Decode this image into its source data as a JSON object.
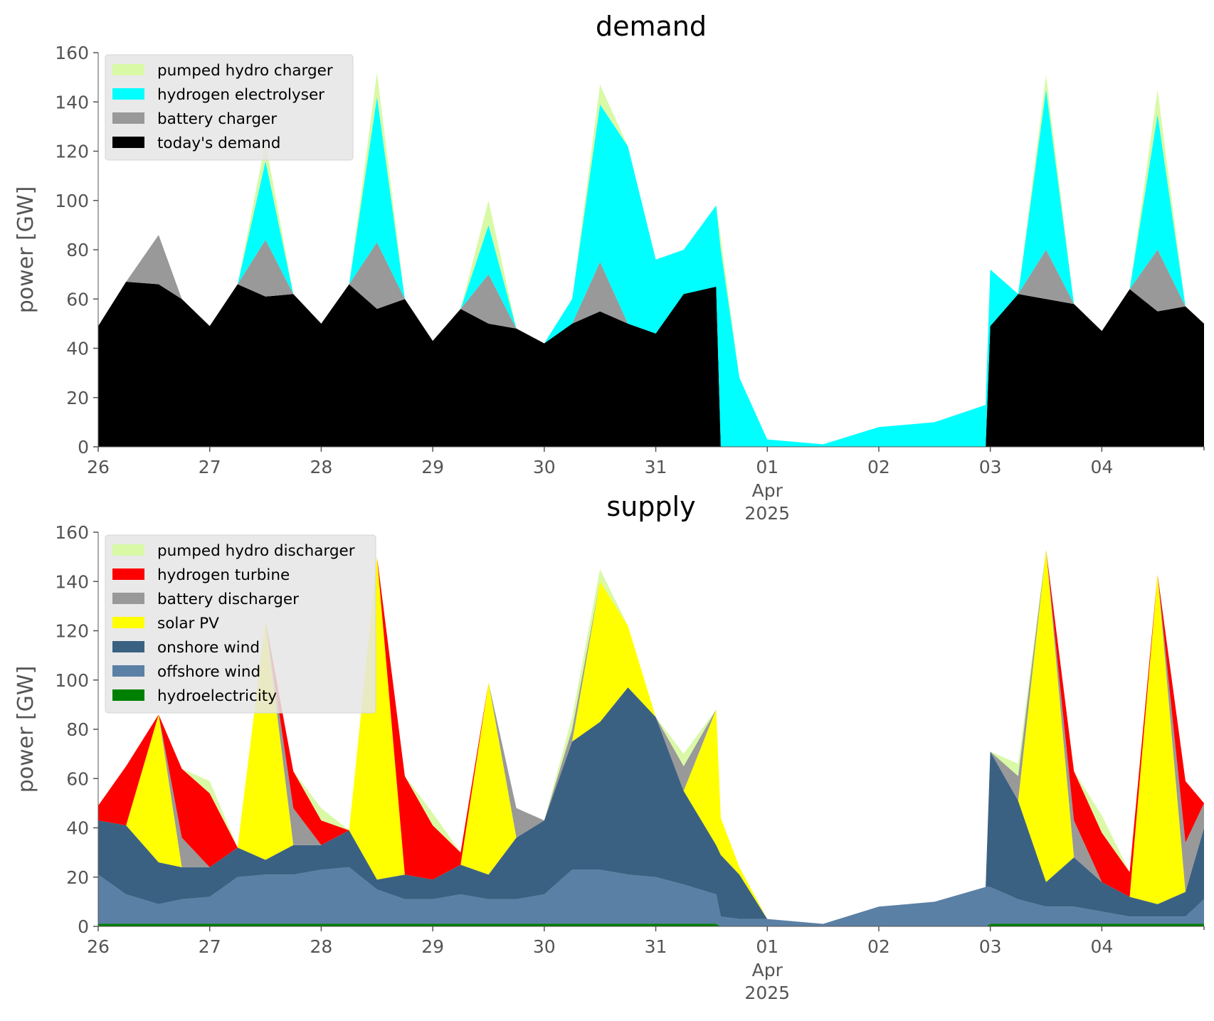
{
  "chart_data": [
    {
      "type": "area",
      "stacked": true,
      "title": "demand",
      "ylabel": "power [GW]",
      "xlabel": "",
      "ylim": [
        0,
        160
      ],
      "yticks": [
        0,
        20,
        40,
        60,
        80,
        100,
        120,
        140,
        160
      ],
      "xlim": [
        "2025-03-26T00:00",
        "2025-04-04T22:00"
      ],
      "xticks": [
        {
          "date": "2025-03-26",
          "label": "26"
        },
        {
          "date": "2025-03-27",
          "label": "27"
        },
        {
          "date": "2025-03-28",
          "label": "28"
        },
        {
          "date": "2025-03-29",
          "label": "29"
        },
        {
          "date": "2025-03-30",
          "label": "30"
        },
        {
          "date": "2025-03-31",
          "label": "31"
        },
        {
          "date": "2025-04-01",
          "label": "01",
          "sub1": "Apr",
          "sub2": "2025"
        },
        {
          "date": "2025-04-02",
          "label": "02"
        },
        {
          "date": "2025-04-03",
          "label": "03"
        },
        {
          "date": "2025-04-04",
          "label": "04"
        }
      ],
      "grid": false,
      "legend_position": "top-left",
      "x": [
        "2025-03-26T00:00",
        "2025-03-26T06:00",
        "2025-03-26T13:00",
        "2025-03-26T18:00",
        "2025-03-27T00:00",
        "2025-03-27T06:00",
        "2025-03-27T12:00",
        "2025-03-27T18:00",
        "2025-03-28T00:00",
        "2025-03-28T06:00",
        "2025-03-28T12:00",
        "2025-03-28T18:00",
        "2025-03-29T00:00",
        "2025-03-29T06:00",
        "2025-03-29T12:00",
        "2025-03-29T18:00",
        "2025-03-30T00:00",
        "2025-03-30T06:00",
        "2025-03-30T12:00",
        "2025-03-30T18:00",
        "2025-03-31T00:00",
        "2025-03-31T06:00",
        "2025-03-31T13:00",
        "2025-03-31T14:00",
        "2025-03-31T18:00",
        "2025-04-01T00:00",
        "2025-04-01T12:00",
        "2025-04-02T00:00",
        "2025-04-02T12:00",
        "2025-04-02T23:00",
        "2025-04-03T00:00",
        "2025-04-03T06:00",
        "2025-04-03T12:00",
        "2025-04-03T18:00",
        "2025-04-04T00:00",
        "2025-04-04T06:00",
        "2025-04-04T12:00",
        "2025-04-04T18:00",
        "2025-04-04T22:00"
      ],
      "series": [
        {
          "name": "today's demand",
          "color": "#000000",
          "values": [
            49,
            67,
            66,
            60,
            49,
            66,
            61,
            62,
            50,
            66,
            56,
            60,
            43,
            56,
            50,
            48,
            42,
            50,
            55,
            50,
            46,
            62,
            65,
            0,
            0,
            0,
            0,
            0,
            0,
            0,
            49,
            62,
            60,
            58,
            47,
            64,
            55,
            57,
            50
          ]
        },
        {
          "name": "battery charger",
          "color": "#999999",
          "values": [
            0,
            0,
            20,
            0,
            0,
            0,
            23,
            0,
            0,
            0,
            27,
            0,
            0,
            0,
            20,
            0,
            0,
            0,
            20,
            0,
            0,
            0,
            0,
            0,
            0,
            0,
            0,
            0,
            0,
            0,
            0,
            0,
            20,
            0,
            0,
            0,
            25,
            0,
            0
          ]
        },
        {
          "name": "hydrogen electrolyser",
          "color": "#00ffff",
          "values": [
            0,
            0,
            0,
            0,
            0,
            0,
            32,
            0,
            0,
            0,
            59,
            0,
            0,
            0,
            20,
            0,
            0,
            10,
            64,
            72,
            30,
            18,
            33,
            80,
            28,
            3,
            1,
            8,
            10,
            17,
            23,
            0,
            65,
            0,
            0,
            0,
            55,
            0,
            0
          ]
        },
        {
          "name": "pumped hydro charger",
          "color": "#d9f9a7",
          "values": [
            0,
            0,
            0,
            0,
            0,
            0,
            8,
            0,
            0,
            0,
            10,
            0,
            0,
            0,
            10,
            0,
            0,
            0,
            8,
            0,
            0,
            0,
            0,
            5,
            0,
            0,
            0,
            0,
            0,
            0,
            0,
            0,
            6,
            0,
            0,
            0,
            10,
            0,
            0
          ]
        }
      ]
    },
    {
      "type": "area",
      "stacked": true,
      "title": "supply",
      "ylabel": "power [GW]",
      "xlabel": "",
      "ylim": [
        0,
        160
      ],
      "yticks": [
        0,
        20,
        40,
        60,
        80,
        100,
        120,
        140,
        160
      ],
      "xlim": [
        "2025-03-26T00:00",
        "2025-04-04T22:00"
      ],
      "xticks": [
        {
          "date": "2025-03-26",
          "label": "26"
        },
        {
          "date": "2025-03-27",
          "label": "27"
        },
        {
          "date": "2025-03-28",
          "label": "28"
        },
        {
          "date": "2025-03-29",
          "label": "29"
        },
        {
          "date": "2025-03-30",
          "label": "30"
        },
        {
          "date": "2025-03-31",
          "label": "31"
        },
        {
          "date": "2025-04-01",
          "label": "01",
          "sub1": "Apr",
          "sub2": "2025"
        },
        {
          "date": "2025-04-02",
          "label": "02"
        },
        {
          "date": "2025-04-03",
          "label": "03"
        },
        {
          "date": "2025-04-04",
          "label": "04"
        }
      ],
      "grid": false,
      "legend_position": "top-left",
      "x": [
        "2025-03-26T00:00",
        "2025-03-26T06:00",
        "2025-03-26T13:00",
        "2025-03-26T18:00",
        "2025-03-27T00:00",
        "2025-03-27T06:00",
        "2025-03-27T12:00",
        "2025-03-27T18:00",
        "2025-03-28T00:00",
        "2025-03-28T06:00",
        "2025-03-28T12:00",
        "2025-03-28T18:00",
        "2025-03-29T00:00",
        "2025-03-29T06:00",
        "2025-03-29T12:00",
        "2025-03-29T18:00",
        "2025-03-30T00:00",
        "2025-03-30T06:00",
        "2025-03-30T12:00",
        "2025-03-30T18:00",
        "2025-03-31T00:00",
        "2025-03-31T06:00",
        "2025-03-31T13:00",
        "2025-03-31T14:00",
        "2025-03-31T18:00",
        "2025-04-01T00:00",
        "2025-04-01T12:00",
        "2025-04-02T00:00",
        "2025-04-02T12:00",
        "2025-04-02T23:00",
        "2025-04-03T00:00",
        "2025-04-03T06:00",
        "2025-04-03T12:00",
        "2025-04-03T18:00",
        "2025-04-04T00:00",
        "2025-04-04T06:00",
        "2025-04-04T12:00",
        "2025-04-04T18:00",
        "2025-04-04T22:00"
      ],
      "series": [
        {
          "name": "hydroelectricity",
          "color": "#008000",
          "values": [
            1,
            1,
            1,
            1,
            1,
            1,
            1,
            1,
            1,
            1,
            1,
            1,
            1,
            1,
            1,
            1,
            1,
            1,
            1,
            1,
            1,
            1,
            1,
            0,
            0,
            0,
            0,
            0,
            0,
            0,
            1,
            1,
            1,
            1,
            1,
            1,
            1,
            1,
            1
          ]
        },
        {
          "name": "offshore wind",
          "color": "#5b80a5",
          "values": [
            20,
            12,
            8,
            10,
            11,
            19,
            20,
            20,
            22,
            23,
            14,
            10,
            10,
            12,
            10,
            10,
            12,
            22,
            22,
            20,
            19,
            16,
            12,
            4,
            3,
            3,
            1,
            8,
            10,
            16,
            15,
            10,
            7,
            7,
            5,
            3,
            3,
            3,
            10
          ]
        },
        {
          "name": "onshore wind",
          "color": "#3b6182",
          "values": [
            22,
            28,
            17,
            13,
            12,
            12,
            6,
            12,
            10,
            15,
            4,
            10,
            8,
            12,
            10,
            25,
            30,
            52,
            60,
            76,
            65,
            38,
            20,
            25,
            18,
            0,
            0,
            0,
            0,
            0,
            55,
            40,
            10,
            20,
            12,
            8,
            5,
            10,
            29
          ]
        },
        {
          "name": "solar PV",
          "color": "#ffff00",
          "values": [
            0,
            0,
            60,
            0,
            0,
            0,
            97,
            0,
            0,
            0,
            131,
            0,
            0,
            0,
            78,
            0,
            0,
            0,
            57,
            25,
            0,
            0,
            55,
            15,
            3,
            0,
            0,
            0,
            0,
            0,
            0,
            0,
            135,
            0,
            0,
            0,
            134,
            0,
            0
          ]
        },
        {
          "name": "battery discharger",
          "color": "#999999",
          "values": [
            0,
            0,
            0,
            12,
            0,
            0,
            0,
            15,
            0,
            0,
            0,
            0,
            0,
            0,
            0,
            12,
            0,
            5,
            0,
            0,
            0,
            10,
            0,
            0,
            0,
            0,
            0,
            0,
            0,
            0,
            0,
            10,
            0,
            15,
            0,
            0,
            0,
            20,
            10
          ]
        },
        {
          "name": "hydrogen turbine",
          "color": "#ff0000",
          "values": [
            6,
            24,
            0,
            28,
            30,
            0,
            0,
            15,
            10,
            0,
            0,
            40,
            22,
            5,
            0,
            0,
            0,
            0,
            0,
            0,
            0,
            0,
            0,
            0,
            0,
            0,
            0,
            0,
            0,
            0,
            0,
            0,
            0,
            20,
            20,
            10,
            0,
            25,
            0
          ]
        },
        {
          "name": "pumped hydro discharger",
          "color": "#d9f9a7",
          "values": [
            0,
            0,
            0,
            0,
            5,
            0,
            0,
            0,
            5,
            0,
            0,
            0,
            5,
            0,
            0,
            0,
            0,
            5,
            5,
            0,
            0,
            5,
            0,
            0,
            0,
            0,
            0,
            0,
            0,
            0,
            0,
            5,
            0,
            0,
            7,
            0,
            0,
            0,
            0
          ]
        }
      ]
    }
  ]
}
